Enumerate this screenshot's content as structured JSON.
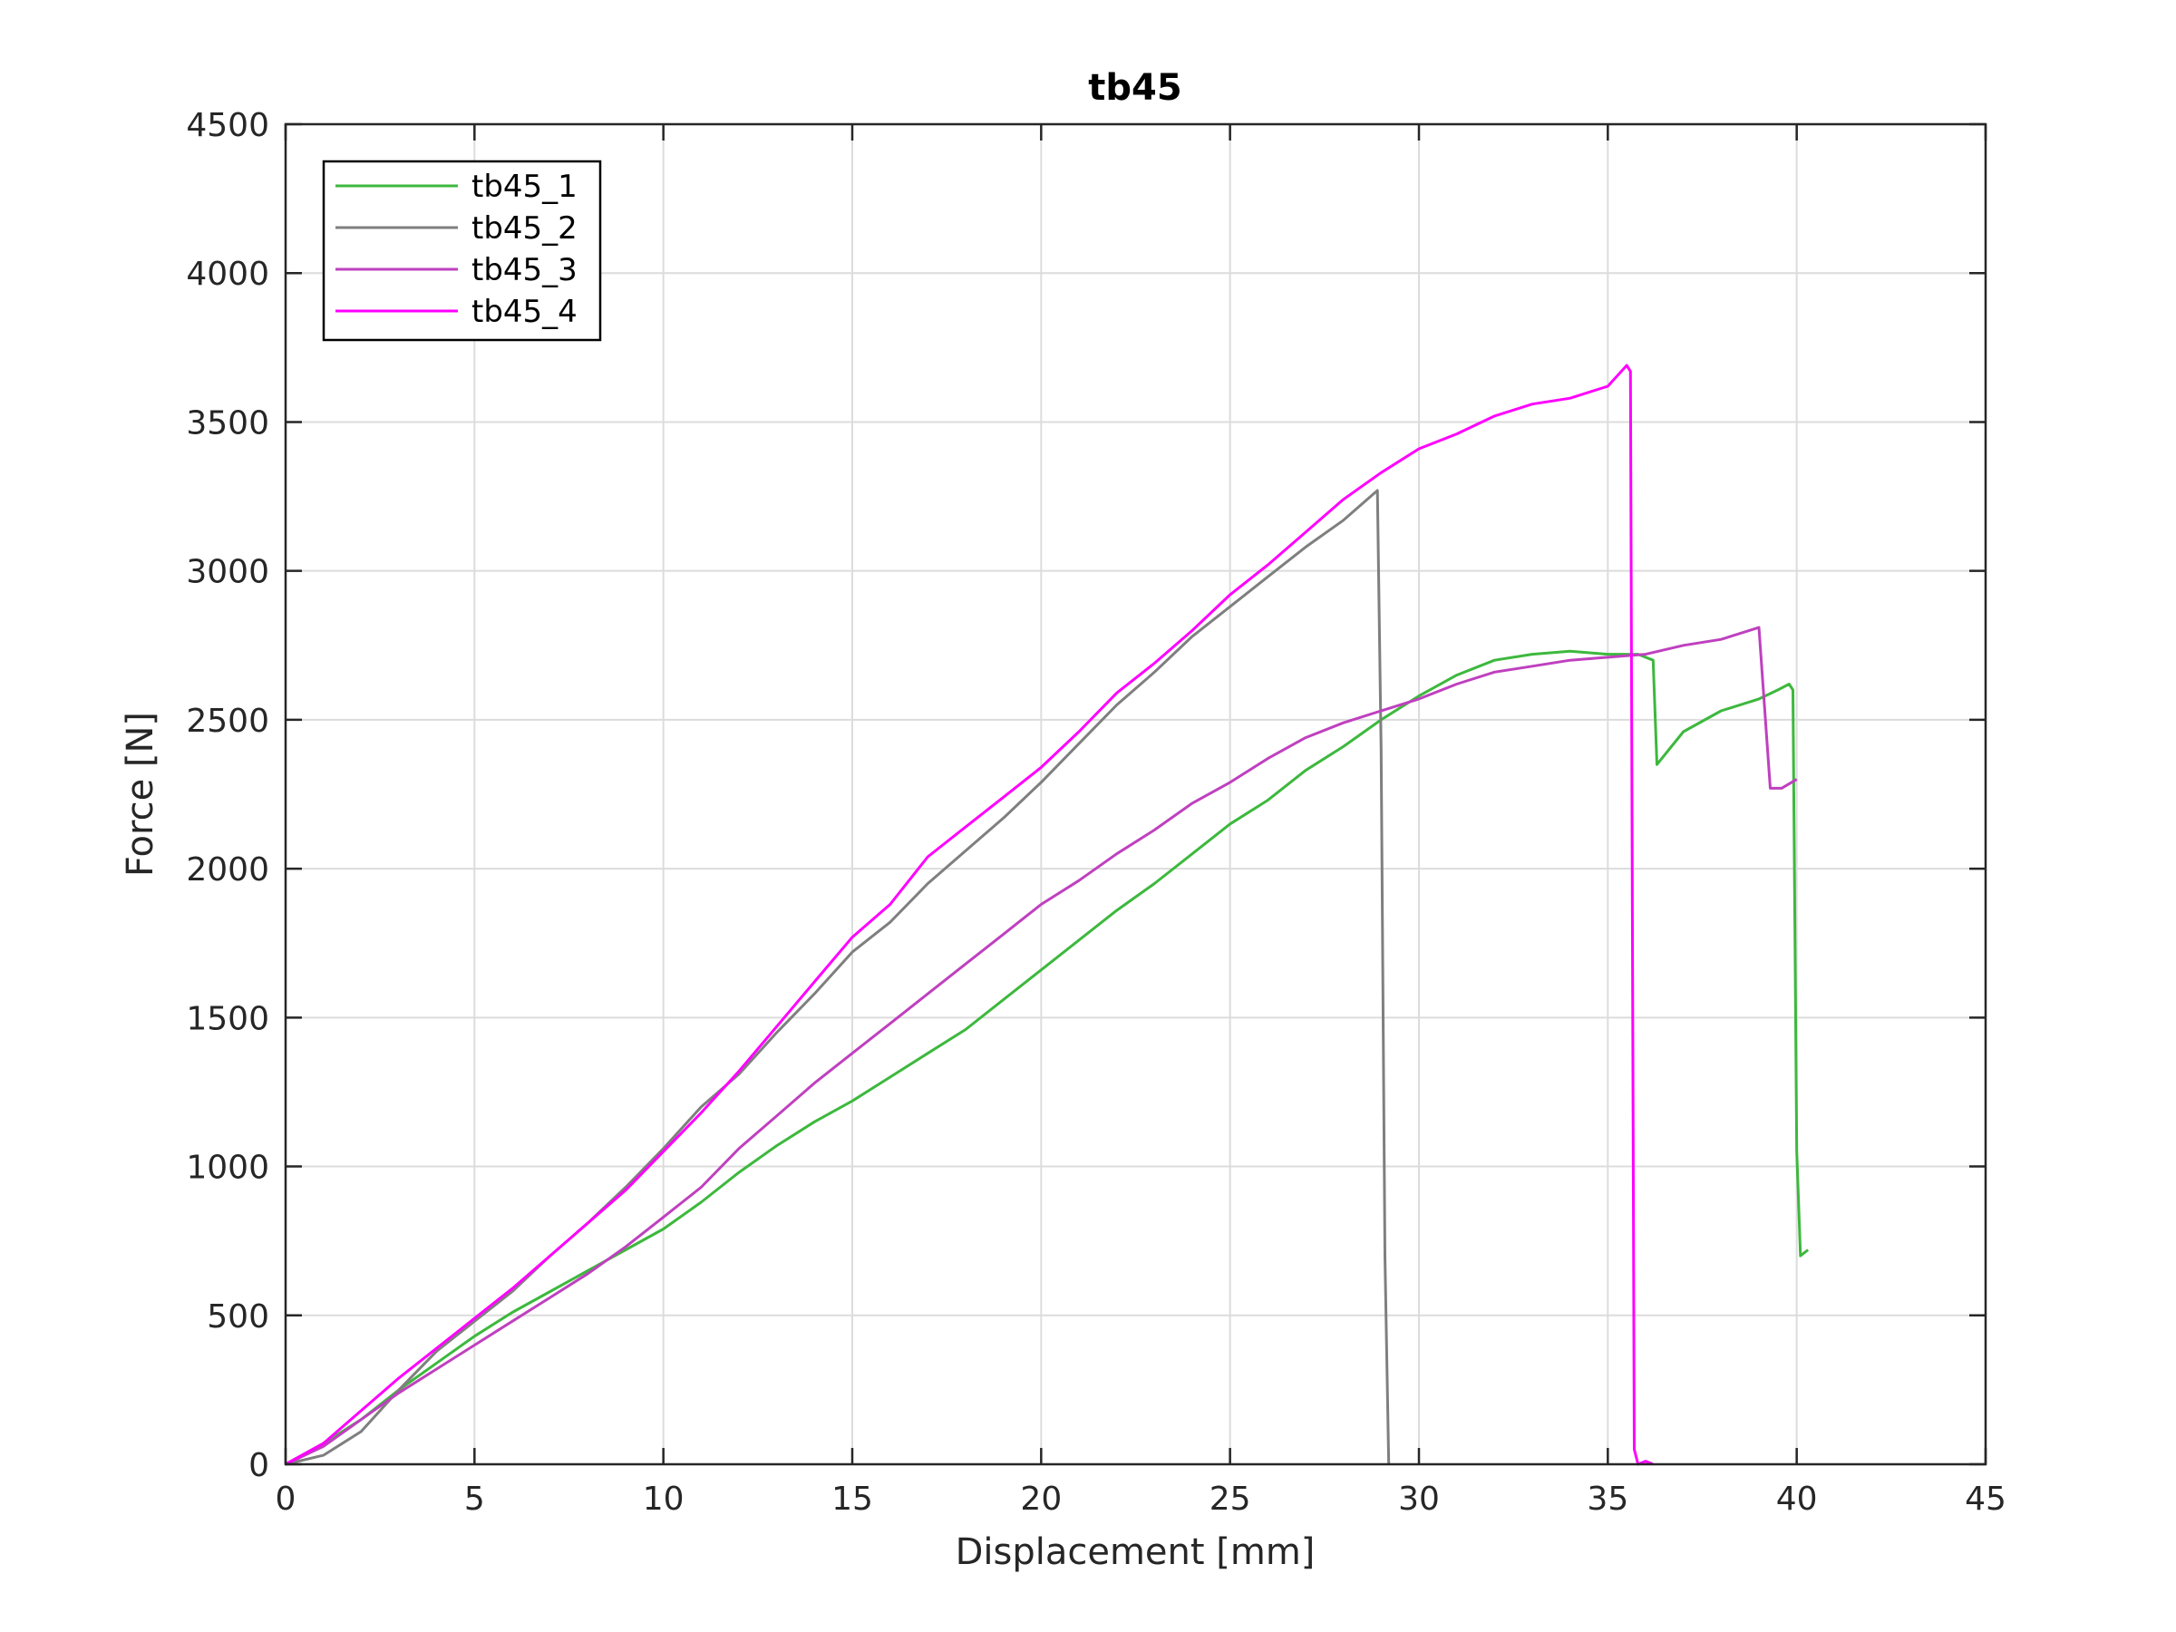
{
  "chart_data": {
    "type": "line",
    "title": "tb45",
    "xlabel": "Displacement [mm]",
    "ylabel": "Force [N]",
    "xlim": [
      0,
      45
    ],
    "ylim": [
      0,
      4500
    ],
    "xticks": [
      0,
      5,
      10,
      15,
      20,
      25,
      30,
      35,
      40,
      45
    ],
    "yticks": [
      0,
      500,
      1000,
      1500,
      2000,
      2500,
      3000,
      3500,
      4000,
      4500
    ],
    "xtick_labels": [
      "0",
      "5",
      "10",
      "15",
      "20",
      "25",
      "30",
      "35",
      "40",
      "45"
    ],
    "ytick_labels": [
      "0",
      "500",
      "1000",
      "1500",
      "2000",
      "2500",
      "3000",
      "3500",
      "4000",
      "4500"
    ],
    "grid": true,
    "legend_position": "top-left",
    "series": [
      {
        "name": "tb45_1",
        "color": "#3db83d",
        "x": [
          0,
          1,
          2,
          3,
          4,
          5,
          6,
          7,
          8,
          9,
          10,
          11,
          12,
          13,
          14,
          15,
          16,
          17,
          18,
          19,
          20,
          21,
          22,
          23,
          24,
          25,
          26,
          27,
          28,
          29,
          30,
          31,
          32,
          33,
          34,
          35,
          35.8,
          36.2,
          36.3,
          37,
          38,
          39,
          39.5,
          39.8,
          39.9,
          40.0,
          40.1,
          40.3
        ],
        "y": [
          0,
          70,
          150,
          250,
          340,
          430,
          510,
          580,
          650,
          720,
          790,
          880,
          980,
          1070,
          1150,
          1220,
          1300,
          1380,
          1460,
          1560,
          1660,
          1760,
          1860,
          1950,
          2050,
          2150,
          2230,
          2330,
          2410,
          2500,
          2580,
          2650,
          2700,
          2720,
          2730,
          2720,
          2720,
          2700,
          2350,
          2460,
          2530,
          2570,
          2600,
          2620,
          2600,
          1050,
          700,
          720
        ]
      },
      {
        "name": "tb45_2",
        "color": "#7f7f7f",
        "x": [
          0,
          1,
          2,
          3,
          4,
          5,
          6,
          7,
          8,
          9,
          10,
          11,
          12,
          13,
          14,
          15,
          16,
          17,
          18,
          19,
          20,
          21,
          22,
          23,
          24,
          25,
          26,
          27,
          28,
          28.9,
          29.0,
          29.1,
          29.2
        ],
        "y": [
          0,
          30,
          110,
          250,
          380,
          480,
          580,
          700,
          810,
          930,
          1060,
          1200,
          1310,
          1450,
          1580,
          1720,
          1820,
          1950,
          2060,
          2170,
          2290,
          2420,
          2550,
          2660,
          2780,
          2880,
          2980,
          3080,
          3170,
          3270,
          2400,
          700,
          0
        ]
      },
      {
        "name": "tb45_3",
        "color": "#bf40bf",
        "x": [
          0,
          1,
          2,
          3,
          4,
          5,
          6,
          7,
          8,
          9,
          10,
          11,
          12,
          13,
          14,
          15,
          16,
          17,
          18,
          19,
          20,
          21,
          22,
          23,
          24,
          25,
          26,
          27,
          28,
          29,
          30,
          31,
          32,
          33,
          34,
          35,
          36,
          37,
          38,
          39,
          39.3,
          39.6,
          40.0
        ],
        "y": [
          0,
          60,
          150,
          240,
          320,
          400,
          480,
          560,
          640,
          730,
          830,
          930,
          1060,
          1170,
          1280,
          1380,
          1480,
          1580,
          1680,
          1780,
          1880,
          1960,
          2050,
          2130,
          2220,
          2290,
          2370,
          2440,
          2490,
          2530,
          2570,
          2620,
          2660,
          2680,
          2700,
          2710,
          2720,
          2750,
          2770,
          2810,
          2270,
          2270,
          2300
        ]
      },
      {
        "name": "tb45_4",
        "color": "#ff00ff",
        "x": [
          0,
          1,
          2,
          3,
          4,
          5,
          6,
          7,
          8,
          9,
          10,
          11,
          12,
          13,
          14,
          15,
          16,
          17,
          18,
          19,
          20,
          21,
          22,
          23,
          24,
          25,
          26,
          27,
          28,
          29,
          30,
          31,
          32,
          33,
          34,
          35,
          35.5,
          35.6,
          35.7,
          35.8,
          36.0,
          36.2
        ],
        "y": [
          0,
          70,
          180,
          290,
          390,
          490,
          590,
          700,
          810,
          920,
          1050,
          1180,
          1320,
          1470,
          1620,
          1770,
          1880,
          2040,
          2140,
          2240,
          2340,
          2460,
          2590,
          2690,
          2800,
          2920,
          3020,
          3130,
          3240,
          3330,
          3410,
          3460,
          3520,
          3560,
          3580,
          3620,
          3690,
          3670,
          50,
          0,
          10,
          0
        ]
      }
    ]
  }
}
